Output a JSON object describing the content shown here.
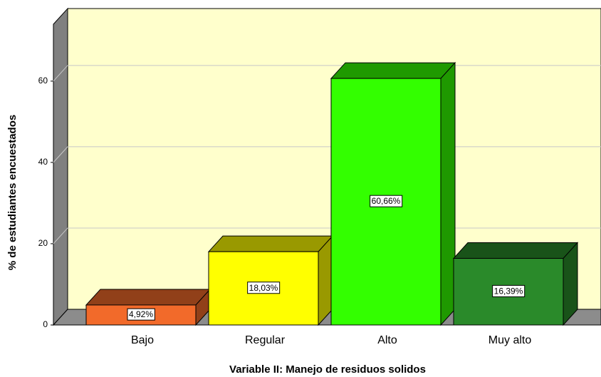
{
  "chart_data": {
    "type": "bar3d",
    "x_label": "Variable II: Manejo de residuos solidos",
    "y_label": "% de estudiantes encuestados",
    "categories": [
      "Bajo",
      "Regular",
      "Alto",
      "Muy alto"
    ],
    "values": [
      4.92,
      18.03,
      60.66,
      16.39
    ],
    "value_labels": [
      "4,92%",
      "18,03%",
      "60,66%",
      "16,39%"
    ],
    "colors": [
      "#f26a2a",
      "#ffff00",
      "#33ff00",
      "#2a8a2a"
    ],
    "ylim": [
      0,
      74
    ],
    "yticks": [
      0,
      20,
      40,
      60
    ],
    "grid": true
  }
}
